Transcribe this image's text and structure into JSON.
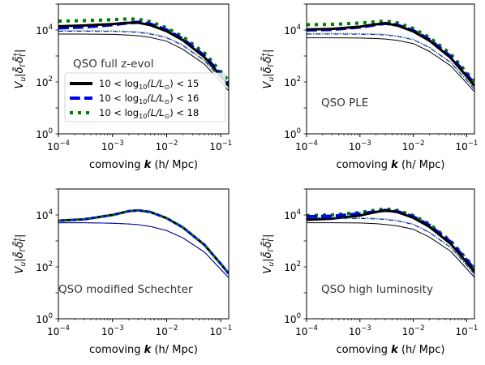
{
  "chart_data": [
    {
      "type": "line",
      "annotation": "QSO full z-evol",
      "xlabel": "comoving k (h/ Mpc)",
      "ylabel": "V_u|δ̃_Γ δ̃_Γ†|",
      "xscale": "log",
      "yscale": "log",
      "xlim": [
        0.0001,
        0.14
      ],
      "ylim": [
        1,
        100000
      ],
      "x_ticks": [
        {
          "base": "10",
          "exp": "−4"
        },
        {
          "base": "10",
          "exp": "−3"
        },
        {
          "base": "10",
          "exp": "−2"
        },
        {
          "base": "10",
          "exp": "−1"
        }
      ],
      "y_ticks": [
        {
          "base": "10",
          "exp": "0"
        },
        {
          "base": "10",
          "exp": "2"
        },
        {
          "base": "10",
          "exp": "4"
        }
      ],
      "legend": {
        "placement": "center-left",
        "entries": [
          {
            "pre": "10 < log",
            "sub": "10",
            "mid": "(L/L",
            "sub2": "⊙",
            "post": ") < 15",
            "color": "#000000",
            "style": "solid"
          },
          {
            "pre": "10 < log",
            "sub": "10",
            "mid": "(L/L",
            "sub2": "⊙",
            "post": ") < 16",
            "color": "#0000ee",
            "style": "dashed"
          },
          {
            "pre": "10 < log",
            "sub": "10",
            "mid": "(L/L",
            "sub2": "⊙",
            "post": ") < 18",
            "color": "#007a00",
            "style": "dotted"
          }
        ]
      },
      "series": [
        {
          "color": "#007a00",
          "style": "dotted",
          "width": 4,
          "x": [
            0.0001,
            0.0003,
            0.001,
            0.002,
            0.003,
            0.005,
            0.01,
            0.02,
            0.05,
            0.1,
            0.14
          ],
          "y": [
            22000,
            23000,
            25000,
            27000,
            26000,
            21000,
            12000,
            5500,
            1300,
            250,
            110
          ]
        },
        {
          "color": "#0000ee",
          "style": "dashed",
          "width": 4,
          "x": [
            0.0001,
            0.0003,
            0.001,
            0.002,
            0.003,
            0.005,
            0.01,
            0.02,
            0.05,
            0.1,
            0.14
          ],
          "y": [
            12000,
            13000,
            16000,
            19000,
            20000,
            17000,
            10000,
            4500,
            1000,
            200,
            90
          ]
        },
        {
          "color": "#000000",
          "style": "solid",
          "width": 3,
          "x": [
            0.0001,
            0.0003,
            0.001,
            0.002,
            0.003,
            0.005,
            0.01,
            0.02,
            0.05,
            0.1,
            0.14
          ],
          "y": [
            14000,
            15000,
            17000,
            19000,
            19000,
            15500,
            9000,
            4000,
            900,
            170,
            70
          ]
        },
        {
          "color": "#0000ee",
          "style": "dashdot",
          "width": 1,
          "x": [
            0.0001,
            0.0003,
            0.001,
            0.002,
            0.003,
            0.005,
            0.01,
            0.02,
            0.05,
            0.1,
            0.14
          ],
          "y": [
            9000,
            9000,
            8800,
            8500,
            8000,
            7000,
            5000,
            2500,
            650,
            130,
            60
          ]
        },
        {
          "color": "#007a00",
          "style": "dotted",
          "width": 1,
          "x": [
            0.0001,
            0.0003,
            0.001,
            0.002,
            0.003,
            0.005,
            0.01,
            0.02,
            0.05,
            0.1,
            0.14
          ],
          "y": [
            9500,
            9500,
            9300,
            9000,
            8600,
            7500,
            5400,
            2700,
            700,
            140,
            65
          ]
        },
        {
          "color": "#000000",
          "style": "solid",
          "width": 1,
          "x": [
            0.0001,
            0.0003,
            0.001,
            0.002,
            0.003,
            0.005,
            0.01,
            0.02,
            0.05,
            0.1,
            0.14
          ],
          "y": [
            7000,
            7000,
            6800,
            6400,
            6000,
            5200,
            3700,
            1800,
            480,
            100,
            45
          ]
        }
      ]
    },
    {
      "type": "line",
      "annotation": "QSO PLE",
      "xlabel": "comoving k (h/ Mpc)",
      "ylabel": "V_u|δ̃_Γ δ̃_Γ†|",
      "xscale": "log",
      "yscale": "log",
      "xlim": [
        0.0001,
        0.14
      ],
      "ylim": [
        1,
        100000
      ],
      "x_ticks": [
        {
          "base": "10",
          "exp": "−4"
        },
        {
          "base": "10",
          "exp": "−3"
        },
        {
          "base": "10",
          "exp": "−2"
        },
        {
          "base": "10",
          "exp": "−1"
        }
      ],
      "y_ticks": [
        {
          "base": "10",
          "exp": "0"
        },
        {
          "base": "10",
          "exp": "2"
        },
        {
          "base": "10",
          "exp": "4"
        }
      ],
      "series": [
        {
          "color": "#007a00",
          "style": "dotted",
          "width": 4,
          "x": [
            0.0001,
            0.0003,
            0.001,
            0.002,
            0.003,
            0.005,
            0.01,
            0.02,
            0.05,
            0.1,
            0.14
          ],
          "y": [
            16000,
            16500,
            18500,
            21000,
            22000,
            19000,
            11500,
            5200,
            1200,
            230,
            100
          ]
        },
        {
          "color": "#0000ee",
          "style": "dashed",
          "width": 4,
          "x": [
            0.0001,
            0.0003,
            0.001,
            0.002,
            0.003,
            0.005,
            0.01,
            0.02,
            0.05,
            0.1,
            0.14
          ],
          "y": [
            10000,
            10500,
            13000,
            16000,
            18000,
            15500,
            9500,
            4300,
            950,
            190,
            85
          ]
        },
        {
          "color": "#000000",
          "style": "solid",
          "width": 3,
          "x": [
            0.0001,
            0.0003,
            0.001,
            0.002,
            0.003,
            0.005,
            0.01,
            0.02,
            0.05,
            0.1,
            0.14
          ],
          "y": [
            10500,
            11000,
            13500,
            16500,
            18000,
            15000,
            8800,
            3900,
            850,
            165,
            70
          ]
        },
        {
          "color": "#0000ee",
          "style": "dashdot",
          "width": 1,
          "x": [
            0.0001,
            0.0003,
            0.001,
            0.002,
            0.003,
            0.005,
            0.01,
            0.02,
            0.05,
            0.1,
            0.14
          ],
          "y": [
            7000,
            7000,
            6900,
            6700,
            6400,
            5700,
            4200,
            2100,
            560,
            115,
            52
          ]
        },
        {
          "color": "#007a00",
          "style": "dotted",
          "width": 1,
          "x": [
            0.0001,
            0.0003,
            0.001,
            0.002,
            0.003,
            0.005,
            0.01,
            0.02,
            0.05,
            0.1,
            0.14
          ],
          "y": [
            7400,
            7400,
            7300,
            7100,
            6800,
            6000,
            4400,
            2200,
            590,
            120,
            55
          ]
        },
        {
          "color": "#000000",
          "style": "solid",
          "width": 1,
          "x": [
            0.0001,
            0.0003,
            0.001,
            0.002,
            0.003,
            0.005,
            0.01,
            0.02,
            0.05,
            0.1,
            0.14
          ],
          "y": [
            5000,
            5000,
            4900,
            4700,
            4500,
            4000,
            3000,
            1500,
            420,
            90,
            42
          ]
        }
      ]
    },
    {
      "type": "line",
      "annotation": "QSO modified Schechter",
      "xlabel": "comoving k (h/ Mpc)",
      "ylabel": "V_u|δ̃_Γ δ̃_Γ†|",
      "xscale": "log",
      "yscale": "log",
      "xlim": [
        0.0001,
        0.14
      ],
      "ylim": [
        1,
        100000
      ],
      "x_ticks": [
        {
          "base": "10",
          "exp": "−4"
        },
        {
          "base": "10",
          "exp": "−3"
        },
        {
          "base": "10",
          "exp": "−2"
        },
        {
          "base": "10",
          "exp": "−1"
        }
      ],
      "y_ticks": [
        {
          "base": "10",
          "exp": "0"
        },
        {
          "base": "10",
          "exp": "2"
        },
        {
          "base": "10",
          "exp": "4"
        }
      ],
      "series": [
        {
          "color": "#000000",
          "style": "solid",
          "width": 3,
          "x": [
            0.0001,
            0.0003,
            0.001,
            0.002,
            0.003,
            0.005,
            0.01,
            0.02,
            0.05,
            0.1,
            0.14
          ],
          "y": [
            6000,
            6800,
            10000,
            14000,
            15000,
            13000,
            7500,
            3300,
            700,
            130,
            55
          ]
        },
        {
          "color": "#0000ee",
          "style": "dashed",
          "width": 3,
          "x": [
            0.0001,
            0.0003,
            0.001,
            0.002,
            0.003,
            0.005,
            0.01,
            0.02,
            0.05,
            0.1,
            0.14
          ],
          "y": [
            6000,
            6800,
            10000,
            14000,
            15000,
            13000,
            7500,
            3300,
            700,
            130,
            55
          ]
        },
        {
          "color": "#007a00",
          "style": "dotted",
          "width": 3,
          "x": [
            0.0001,
            0.0003,
            0.001,
            0.002,
            0.003,
            0.005,
            0.01,
            0.02,
            0.05,
            0.1,
            0.14
          ],
          "y": [
            6000,
            6800,
            10000,
            14000,
            15000,
            13000,
            7500,
            3300,
            700,
            130,
            55
          ]
        },
        {
          "color": "#000000",
          "style": "solid",
          "width": 1,
          "x": [
            0.0001,
            0.0003,
            0.001,
            0.002,
            0.003,
            0.005,
            0.01,
            0.02,
            0.05,
            0.1,
            0.14
          ],
          "y": [
            5000,
            5000,
            4800,
            4500,
            4200,
            3600,
            2500,
            1300,
            370,
            80,
            38
          ]
        },
        {
          "color": "#0000ee",
          "style": "dashed",
          "width": 1,
          "x": [
            0.0001,
            0.0003,
            0.001,
            0.002,
            0.003,
            0.005,
            0.01,
            0.02,
            0.05,
            0.1,
            0.14
          ],
          "y": [
            5000,
            5000,
            4800,
            4500,
            4200,
            3600,
            2500,
            1300,
            370,
            80,
            38
          ]
        }
      ]
    },
    {
      "type": "line",
      "annotation": "QSO high luminosity",
      "xlabel": "comoving k (h/ Mpc)",
      "ylabel": "V_u|δ̃_Γ δ̃_Γ†|",
      "xscale": "log",
      "yscale": "log",
      "xlim": [
        0.0001,
        0.14
      ],
      "ylim": [
        1,
        100000
      ],
      "x_ticks": [
        {
          "base": "10",
          "exp": "−4"
        },
        {
          "base": "10",
          "exp": "−3"
        },
        {
          "base": "10",
          "exp": "−2"
        },
        {
          "base": "10",
          "exp": "−1"
        }
      ],
      "y_ticks": [
        {
          "base": "10",
          "exp": "0"
        },
        {
          "base": "10",
          "exp": "2"
        },
        {
          "base": "10",
          "exp": "4"
        }
      ],
      "series": [
        {
          "color": "#007a00",
          "style": "dotted",
          "width": 4,
          "x": [
            0.0001,
            0.0003,
            0.001,
            0.002,
            0.003,
            0.005,
            0.01,
            0.02,
            0.05,
            0.1,
            0.14
          ],
          "y": [
            9500,
            10000,
            12500,
            15500,
            17000,
            15000,
            9500,
            4500,
            1000,
            200,
            90
          ]
        },
        {
          "color": "#0000ee",
          "style": "dashed",
          "width": 4,
          "x": [
            0.0001,
            0.0003,
            0.001,
            0.002,
            0.003,
            0.005,
            0.01,
            0.02,
            0.05,
            0.1,
            0.14
          ],
          "y": [
            8500,
            9000,
            11000,
            13500,
            15000,
            13500,
            8500,
            4000,
            900,
            180,
            80
          ]
        },
        {
          "color": "#000000",
          "style": "solid",
          "width": 3,
          "x": [
            0.0001,
            0.0003,
            0.001,
            0.002,
            0.003,
            0.005,
            0.01,
            0.02,
            0.05,
            0.1,
            0.14
          ],
          "y": [
            6500,
            7200,
            9500,
            13000,
            15000,
            13000,
            7800,
            3500,
            780,
            150,
            65
          ]
        },
        {
          "color": "#0000ee",
          "style": "dashdot",
          "width": 1,
          "x": [
            0.0001,
            0.0003,
            0.001,
            0.002,
            0.003,
            0.005,
            0.01,
            0.02,
            0.05,
            0.1,
            0.14
          ],
          "y": [
            7500,
            7500,
            7300,
            7000,
            6700,
            5900,
            4300,
            2100,
            560,
            115,
            52
          ]
        },
        {
          "color": "#007a00",
          "style": "dotted",
          "width": 1,
          "x": [
            0.0001,
            0.0003,
            0.001,
            0.002,
            0.003,
            0.005,
            0.01,
            0.02,
            0.05,
            0.1,
            0.14
          ],
          "y": [
            8000,
            8000,
            7800,
            7500,
            7100,
            6200,
            4500,
            2200,
            590,
            120,
            55
          ]
        },
        {
          "color": "#000000",
          "style": "solid",
          "width": 1,
          "x": [
            0.0001,
            0.0003,
            0.001,
            0.002,
            0.003,
            0.005,
            0.01,
            0.02,
            0.05,
            0.1,
            0.14
          ],
          "y": [
            5000,
            5000,
            4900,
            4600,
            4300,
            3800,
            2800,
            1400,
            400,
            85,
            40
          ]
        }
      ]
    }
  ]
}
